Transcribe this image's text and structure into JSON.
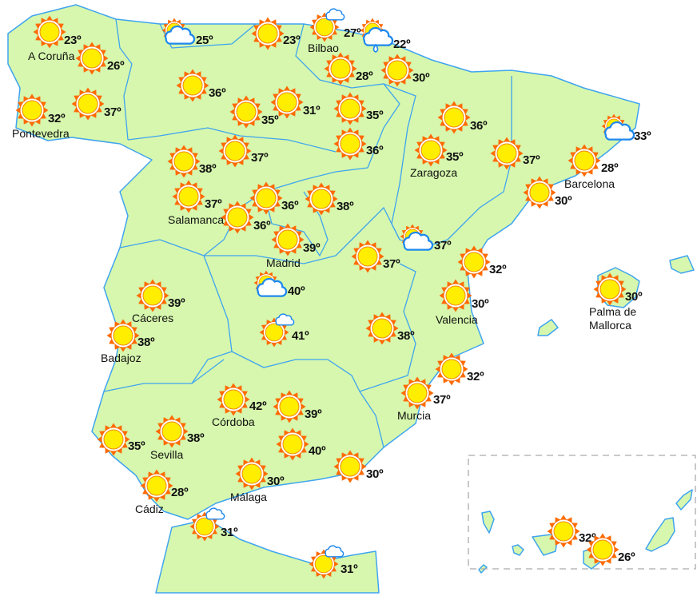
{
  "colors": {
    "land": "#d6f7ad",
    "border": "#3fa4f0",
    "sun_rays": "#ff6a00",
    "sun_core": "#ffee00",
    "cloud_outline": "#1e88ee",
    "text": "#111111"
  },
  "stations": [
    {
      "city": "A Coruña",
      "temp": "23º",
      "icon": "sun"
    },
    {
      "city": "",
      "temp": "26º",
      "icon": "sun"
    },
    {
      "city": "",
      "temp": "37º",
      "icon": "sun"
    },
    {
      "city": "Pontevedra",
      "temp": "32º",
      "icon": "sun"
    },
    {
      "city": "",
      "temp": "25º",
      "icon": "cloudy"
    },
    {
      "city": "",
      "temp": "23º",
      "icon": "sun"
    },
    {
      "city": "Bilbao",
      "temp": "27º",
      "icon": "sun-cloud"
    },
    {
      "city": "",
      "temp": "22º",
      "icon": "rain"
    },
    {
      "city": "",
      "temp": "28º",
      "icon": "sun"
    },
    {
      "city": "",
      "temp": "30º",
      "icon": "sun"
    },
    {
      "city": "",
      "temp": "36º",
      "icon": "sun"
    },
    {
      "city": "",
      "temp": "35º",
      "icon": "sun"
    },
    {
      "city": "",
      "temp": "31º",
      "icon": "sun"
    },
    {
      "city": "",
      "temp": "35º",
      "icon": "sun"
    },
    {
      "city": "",
      "temp": "36º",
      "icon": "sun"
    },
    {
      "city": "",
      "temp": "36º",
      "icon": "sun"
    },
    {
      "city": "Zaragoza",
      "temp": "35º",
      "icon": "sun"
    },
    {
      "city": "",
      "temp": "37º",
      "icon": "sun"
    },
    {
      "city": "",
      "temp": "33º",
      "icon": "cloudy"
    },
    {
      "city": "Barcelona",
      "temp": "28º",
      "icon": "sun"
    },
    {
      "city": "",
      "temp": "30º",
      "icon": "sun"
    },
    {
      "city": "",
      "temp": "38º",
      "icon": "sun"
    },
    {
      "city": "",
      "temp": "37º",
      "icon": "sun"
    },
    {
      "city": "Salamanca",
      "temp": "37º",
      "icon": "sun"
    },
    {
      "city": "",
      "temp": "36º",
      "icon": "sun"
    },
    {
      "city": "",
      "temp": "36º",
      "icon": "sun"
    },
    {
      "city": "",
      "temp": "38º",
      "icon": "sun"
    },
    {
      "city": "Madrid",
      "temp": "39º",
      "icon": "sun"
    },
    {
      "city": "",
      "temp": "37º",
      "icon": "sun"
    },
    {
      "city": "",
      "temp": "37º",
      "icon": "cloudy"
    },
    {
      "city": "",
      "temp": "32º",
      "icon": "sun"
    },
    {
      "city": "Cáceres",
      "temp": "39º",
      "icon": "sun"
    },
    {
      "city": "",
      "temp": "40º",
      "icon": "cloudy"
    },
    {
      "city": "Valencia",
      "temp": "30º",
      "icon": "sun"
    },
    {
      "city": "Palma de Mallorca",
      "temp": "30º",
      "icon": "sun"
    },
    {
      "city": "Badajoz",
      "temp": "38º",
      "icon": "sun"
    },
    {
      "city": "",
      "temp": "41º",
      "icon": "sun-cloud"
    },
    {
      "city": "",
      "temp": "38º",
      "icon": "sun"
    },
    {
      "city": "",
      "temp": "32º",
      "icon": "sun"
    },
    {
      "city": "Córdoba",
      "temp": "42º",
      "icon": "sun"
    },
    {
      "city": "",
      "temp": "39º",
      "icon": "sun"
    },
    {
      "city": "Murcia",
      "temp": "37º",
      "icon": "sun"
    },
    {
      "city": "",
      "temp": "35º",
      "icon": "sun"
    },
    {
      "city": "Sevilla",
      "temp": "38º",
      "icon": "sun"
    },
    {
      "city": "",
      "temp": "40º",
      "icon": "sun"
    },
    {
      "city": "",
      "temp": "30º",
      "icon": "sun"
    },
    {
      "city": "Málaga",
      "temp": "30º",
      "icon": "sun"
    },
    {
      "city": "Cádiz",
      "temp": "28º",
      "icon": "sun"
    },
    {
      "city": "",
      "temp": "31º",
      "icon": "sun-cloud"
    },
    {
      "city": "",
      "temp": "31º",
      "icon": "sun-cloud"
    },
    {
      "city": "",
      "temp": "32º",
      "icon": "sun"
    },
    {
      "city": "",
      "temp": "26º",
      "icon": "sun"
    }
  ]
}
